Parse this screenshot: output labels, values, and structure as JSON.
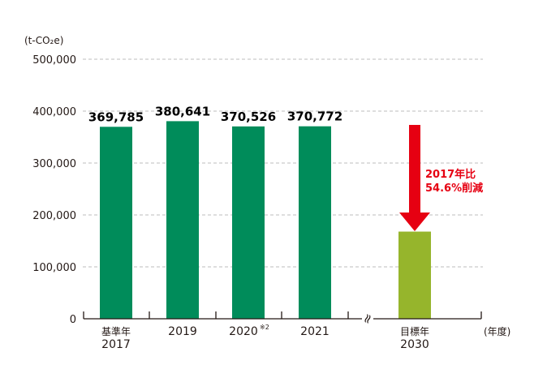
{
  "chart_data": {
    "type": "bar",
    "unit_label": "(t-CO₂e)",
    "x_unit_label": "(年度)",
    "ylim": [
      0,
      500000
    ],
    "yticks": [
      "0",
      "100,000",
      "200,000",
      "300,000",
      "400,000",
      "500,000"
    ],
    "grid": true,
    "categories": [
      {
        "prefix": "基準年",
        "label": "2017",
        "footnote": ""
      },
      {
        "prefix": "",
        "label": "2019",
        "footnote": ""
      },
      {
        "prefix": "",
        "label": "2020",
        "footnote": "※2"
      },
      {
        "prefix": "",
        "label": "2021",
        "footnote": ""
      },
      {
        "prefix": "目標年",
        "label": "2030",
        "footnote": ""
      }
    ],
    "values": [
      369785,
      380641,
      370526,
      370772,
      167910
    ],
    "value_labels": [
      "369,785",
      "380,641",
      "370,526",
      "370,772",
      ""
    ],
    "axis_break_symbol": "≈",
    "annotation": {
      "line1": "2017年比",
      "line2": "54.6%削減",
      "color": "#e60012"
    },
    "colors": {
      "actual": "#008c5a",
      "target": "#96b52c",
      "grid": "#bdbdbd",
      "axis": "#231815"
    }
  }
}
